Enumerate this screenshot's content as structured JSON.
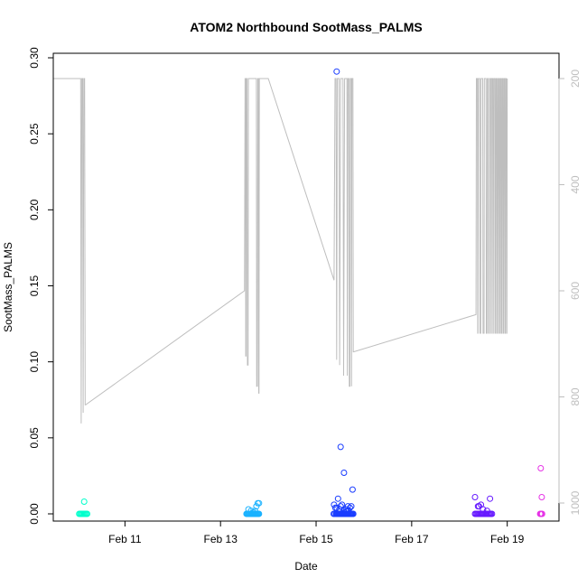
{
  "chart_data": {
    "type": "scatter",
    "title": "ATOM2 Northbound SootMass_PALMS",
    "xlabel": "Date",
    "ylabel": "SootMass_PALMS",
    "xlim": [
      "2017-02-09T12:00",
      "2017-02-20T02:00"
    ],
    "ylim": [
      0,
      0.3
    ],
    "y_ticks": [
      "0.00",
      "0.05",
      "0.10",
      "0.15",
      "0.20",
      "0.25",
      "0.30"
    ],
    "x_ticks": [
      {
        "date": "2017-02-11",
        "label": "Feb 11"
      },
      {
        "date": "2017-02-13",
        "label": "Feb 13"
      },
      {
        "date": "2017-02-15",
        "label": "Feb 15"
      },
      {
        "date": "2017-02-17",
        "label": "Feb 17"
      },
      {
        "date": "2017-02-19",
        "label": "Feb 19"
      }
    ],
    "y2": {
      "reversed": true,
      "ticks": [
        "200",
        "400",
        "600",
        "800",
        "1000"
      ],
      "color": "#bebebe",
      "series": [
        [
          "2017-02-09T12:00",
          200
        ],
        [
          "2017-02-10T01:45",
          200
        ],
        [
          "2017-02-10T02:00",
          850
        ],
        [
          "2017-02-10T02:20",
          200
        ],
        [
          "2017-02-10T02:45",
          200
        ],
        [
          "2017-02-10T03:00",
          830
        ],
        [
          "2017-02-10T03:20",
          200
        ],
        [
          "2017-02-10T03:45",
          200
        ],
        [
          "2017-02-10T04:00",
          815
        ],
        [
          "2017-02-10T04:15",
          815
        ],
        [
          "2017-02-13T12:00",
          600
        ],
        [
          "2017-02-13T12:20",
          200
        ],
        [
          "2017-02-13T12:30",
          200
        ],
        [
          "2017-02-13T12:40",
          723
        ],
        [
          "2017-02-13T12:50",
          723
        ],
        [
          "2017-02-13T13:00",
          200
        ],
        [
          "2017-02-13T13:20",
          200
        ],
        [
          "2017-02-13T13:30",
          740
        ],
        [
          "2017-02-13T13:50",
          740
        ],
        [
          "2017-02-13T14:00",
          200
        ],
        [
          "2017-02-13T18:00",
          200
        ],
        [
          "2017-02-13T18:10",
          780
        ],
        [
          "2017-02-13T18:30",
          780
        ],
        [
          "2017-02-13T18:40",
          200
        ],
        [
          "2017-02-13T19:00",
          200
        ],
        [
          "2017-02-13T19:10",
          793
        ],
        [
          "2017-02-13T19:20",
          793
        ],
        [
          "2017-02-13T19:30",
          200
        ],
        [
          "2017-02-13T20:00",
          200
        ],
        [
          "2017-02-14T00:00",
          200
        ],
        [
          "2017-02-15T09:00",
          580
        ],
        [
          "2017-02-15T09:30",
          200
        ],
        [
          "2017-02-15T10:00",
          200
        ],
        [
          "2017-02-15T10:20",
          730
        ],
        [
          "2017-02-15T10:40",
          200
        ],
        [
          "2017-02-15T11:30",
          200
        ],
        [
          "2017-02-15T11:50",
          740
        ],
        [
          "2017-02-15T12:20",
          200
        ],
        [
          "2017-02-15T13:30",
          200
        ],
        [
          "2017-02-15T13:50",
          760
        ],
        [
          "2017-02-15T14:20",
          200
        ],
        [
          "2017-02-15T15:30",
          200
        ],
        [
          "2017-02-15T15:40",
          760
        ],
        [
          "2017-02-15T16:00",
          200
        ],
        [
          "2017-02-15T16:30",
          200
        ],
        [
          "2017-02-15T16:40",
          780
        ],
        [
          "2017-02-15T17:00",
          780
        ],
        [
          "2017-02-15T17:10",
          200
        ],
        [
          "2017-02-15T17:40",
          200
        ],
        [
          "2017-02-15T17:50",
          780
        ],
        [
          "2017-02-15T18:00",
          200
        ],
        [
          "2017-02-15T18:30",
          200
        ],
        [
          "2017-02-15T18:40",
          715
        ],
        [
          "2017-02-15T18:50",
          715
        ],
        [
          "2017-02-18T08:20",
          645
        ],
        [
          "2017-02-18T08:30",
          200
        ],
        [
          "2017-02-18T09:00",
          200
        ],
        [
          "2017-02-18T09:10",
          680
        ],
        [
          "2017-02-18T09:20",
          680
        ],
        [
          "2017-02-18T09:30",
          200
        ],
        [
          "2017-02-18T10:10",
          200
        ],
        [
          "2017-02-18T10:20",
          680
        ],
        [
          "2017-02-18T10:40",
          680
        ],
        [
          "2017-02-18T10:50",
          200
        ],
        [
          "2017-02-18T11:40",
          200
        ],
        [
          "2017-02-18T11:50",
          680
        ],
        [
          "2017-02-18T12:20",
          680
        ],
        [
          "2017-02-18T12:30",
          200
        ],
        [
          "2017-02-18T13:20",
          200
        ],
        [
          "2017-02-18T13:30",
          680
        ],
        [
          "2017-02-18T13:50",
          680
        ],
        [
          "2017-02-18T14:00",
          200
        ],
        [
          "2017-02-18T14:30",
          200
        ],
        [
          "2017-02-18T14:40",
          680
        ],
        [
          "2017-02-18T15:00",
          680
        ],
        [
          "2017-02-18T15:10",
          200
        ],
        [
          "2017-02-18T15:40",
          200
        ],
        [
          "2017-02-18T15:50",
          680
        ],
        [
          "2017-02-18T16:00",
          680
        ],
        [
          "2017-02-18T16:10",
          200
        ],
        [
          "2017-02-18T16:40",
          200
        ],
        [
          "2017-02-18T16:50",
          680
        ],
        [
          "2017-02-18T17:00",
          680
        ],
        [
          "2017-02-18T17:10",
          200
        ],
        [
          "2017-02-18T17:40",
          200
        ],
        [
          "2017-02-18T17:50",
          680
        ],
        [
          "2017-02-18T18:00",
          680
        ],
        [
          "2017-02-18T18:10",
          200
        ],
        [
          "2017-02-18T18:30",
          200
        ],
        [
          "2017-02-18T18:40",
          680
        ],
        [
          "2017-02-18T18:50",
          680
        ],
        [
          "2017-02-18T19:00",
          200
        ],
        [
          "2017-02-18T19:20",
          200
        ],
        [
          "2017-02-18T19:30",
          680
        ],
        [
          "2017-02-18T19:40",
          680
        ],
        [
          "2017-02-18T19:50",
          200
        ],
        [
          "2017-02-18T20:10",
          200
        ],
        [
          "2017-02-18T20:20",
          680
        ],
        [
          "2017-02-18T20:30",
          680
        ],
        [
          "2017-02-18T20:40",
          200
        ],
        [
          "2017-02-18T21:00",
          200
        ],
        [
          "2017-02-18T21:10",
          680
        ],
        [
          "2017-02-18T21:20",
          680
        ],
        [
          "2017-02-18T21:30",
          200
        ],
        [
          "2017-02-18T21:50",
          200
        ],
        [
          "2017-02-18T22:00",
          680
        ],
        [
          "2017-02-18T22:10",
          680
        ],
        [
          "2017-02-18T22:20",
          200
        ],
        [
          "2017-02-18T22:40",
          200
        ],
        [
          "2017-02-18T22:50",
          680
        ],
        [
          "2017-02-18T23:00",
          680
        ],
        [
          "2017-02-18T23:10",
          200
        ],
        [
          "2017-02-18T23:30",
          200
        ],
        [
          "2017-02-18T23:40",
          680
        ],
        [
          "2017-02-18T23:50",
          680
        ],
        [
          "2017-02-19T00:00",
          200
        ]
      ]
    },
    "series": [
      {
        "color": "#00ffcc",
        "x": [
          "2017-02-10T01:00",
          "2017-02-10T01:30",
          "2017-02-10T02:00",
          "2017-02-10T02:30",
          "2017-02-10T03:00",
          "2017-02-10T03:30",
          "2017-02-10T04:00",
          "2017-02-10T04:30",
          "2017-02-10T05:00",
          "2017-02-10T03:30"
        ],
        "y": [
          0,
          0,
          0,
          0,
          0,
          0,
          0,
          0,
          0,
          0.008
        ]
      },
      {
        "color": "#1ab2ff",
        "x": [
          "2017-02-13T13:00",
          "2017-02-13T13:20",
          "2017-02-13T13:40",
          "2017-02-13T14:00",
          "2017-02-13T14:20",
          "2017-02-13T14:40",
          "2017-02-13T15:00",
          "2017-02-13T15:20",
          "2017-02-13T15:40",
          "2017-02-13T16:00",
          "2017-02-13T16:20",
          "2017-02-13T16:40",
          "2017-02-13T17:00",
          "2017-02-13T17:20",
          "2017-02-13T17:40",
          "2017-02-13T18:00",
          "2017-02-13T18:20",
          "2017-02-13T18:40",
          "2017-02-13T19:00",
          "2017-02-13T19:20",
          "2017-02-13T14:00",
          "2017-02-13T15:20",
          "2017-02-13T16:40",
          "2017-02-13T17:20",
          "2017-02-13T18:00",
          "2017-02-13T18:40",
          "2017-02-13T19:20"
        ],
        "y": [
          0,
          0,
          0,
          0,
          0,
          0,
          0,
          0,
          0,
          0,
          0,
          0,
          0,
          0,
          0,
          0,
          0,
          0,
          0,
          0,
          0.003,
          0.002,
          0.001,
          0.002,
          0.005,
          0.007,
          0.007
        ]
      },
      {
        "color": "#1a3dff",
        "x": [
          "2017-02-15T08:50",
          "2017-02-15T09:20",
          "2017-02-15T10:00",
          "2017-02-15T10:20",
          "2017-02-15T10:40",
          "2017-02-15T11:00",
          "2017-02-15T11:20",
          "2017-02-15T11:40",
          "2017-02-15T12:00",
          "2017-02-15T12:20",
          "2017-02-15T12:40",
          "2017-02-15T13:00",
          "2017-02-15T13:20",
          "2017-02-15T13:40",
          "2017-02-15T14:00",
          "2017-02-15T14:20",
          "2017-02-15T14:40",
          "2017-02-15T15:00",
          "2017-02-15T15:20",
          "2017-02-15T15:40",
          "2017-02-15T16:00",
          "2017-02-15T16:20",
          "2017-02-15T16:40",
          "2017-02-15T17:00",
          "2017-02-15T17:20",
          "2017-02-15T17:40",
          "2017-02-15T18:00",
          "2017-02-15T18:20",
          "2017-02-15T18:40",
          "2017-02-15T18:20",
          "2017-02-15T17:40",
          "2017-02-15T17:00",
          "2017-02-15T16:20",
          "2017-02-15T15:40",
          "2017-02-15T15:00",
          "2017-02-15T14:20",
          "2017-02-15T13:40",
          "2017-02-15T13:00",
          "2017-02-15T12:20",
          "2017-02-15T11:40",
          "2017-02-15T11:00",
          "2017-02-15T10:20",
          "2017-02-15T09:40",
          "2017-02-15T09:00",
          "2017-02-15T10:20",
          "2017-02-15T12:20",
          "2017-02-15T14:00",
          "2017-02-15T16:00"
        ],
        "y": [
          0,
          0,
          0,
          0,
          0,
          0,
          0,
          0,
          0,
          0,
          0,
          0,
          0,
          0,
          0,
          0,
          0,
          0,
          0,
          0,
          0,
          0,
          0,
          0,
          0,
          0,
          0,
          0,
          0,
          0.016,
          0.005,
          0.004,
          0.002,
          0.002,
          0.003,
          0.001,
          0.002,
          0.006,
          0.005,
          0.003,
          0.01,
          0.004,
          0.004,
          0.006,
          0.291,
          0.044,
          0.027,
          0.005
        ]
      },
      {
        "color": "#6619ff",
        "x": [
          "2017-02-18T07:50",
          "2017-02-18T08:20",
          "2017-02-18T08:50",
          "2017-02-18T09:20",
          "2017-02-18T09:50",
          "2017-02-18T10:20",
          "2017-02-18T10:50",
          "2017-02-18T11:20",
          "2017-02-18T11:50",
          "2017-02-18T12:20",
          "2017-02-18T12:50",
          "2017-02-18T13:20",
          "2017-02-18T13:50",
          "2017-02-18T14:20",
          "2017-02-18T14:50",
          "2017-02-18T15:20",
          "2017-02-18T15:50",
          "2017-02-18T16:20",
          "2017-02-18T07:50",
          "2017-02-18T09:20",
          "2017-02-18T09:50",
          "2017-02-18T10:50",
          "2017-02-18T11:50",
          "2017-02-18T13:50",
          "2017-02-18T15:20"
        ],
        "y": [
          0,
          0,
          0,
          0,
          0,
          0,
          0,
          0,
          0,
          0,
          0,
          0,
          0,
          0,
          0,
          0,
          0,
          0,
          0.011,
          0.005,
          0.005,
          0.006,
          0.003,
          0.002,
          0.01
        ]
      },
      {
        "color": "#e633e6",
        "x": [
          "2017-02-19T16:30",
          "2017-02-19T16:50",
          "2017-02-19T17:10",
          "2017-02-19T17:30",
          "2017-02-19T16:50",
          "2017-02-19T17:20"
        ],
        "y": [
          0,
          0,
          0,
          0,
          0.03,
          0.011
        ]
      }
    ]
  }
}
